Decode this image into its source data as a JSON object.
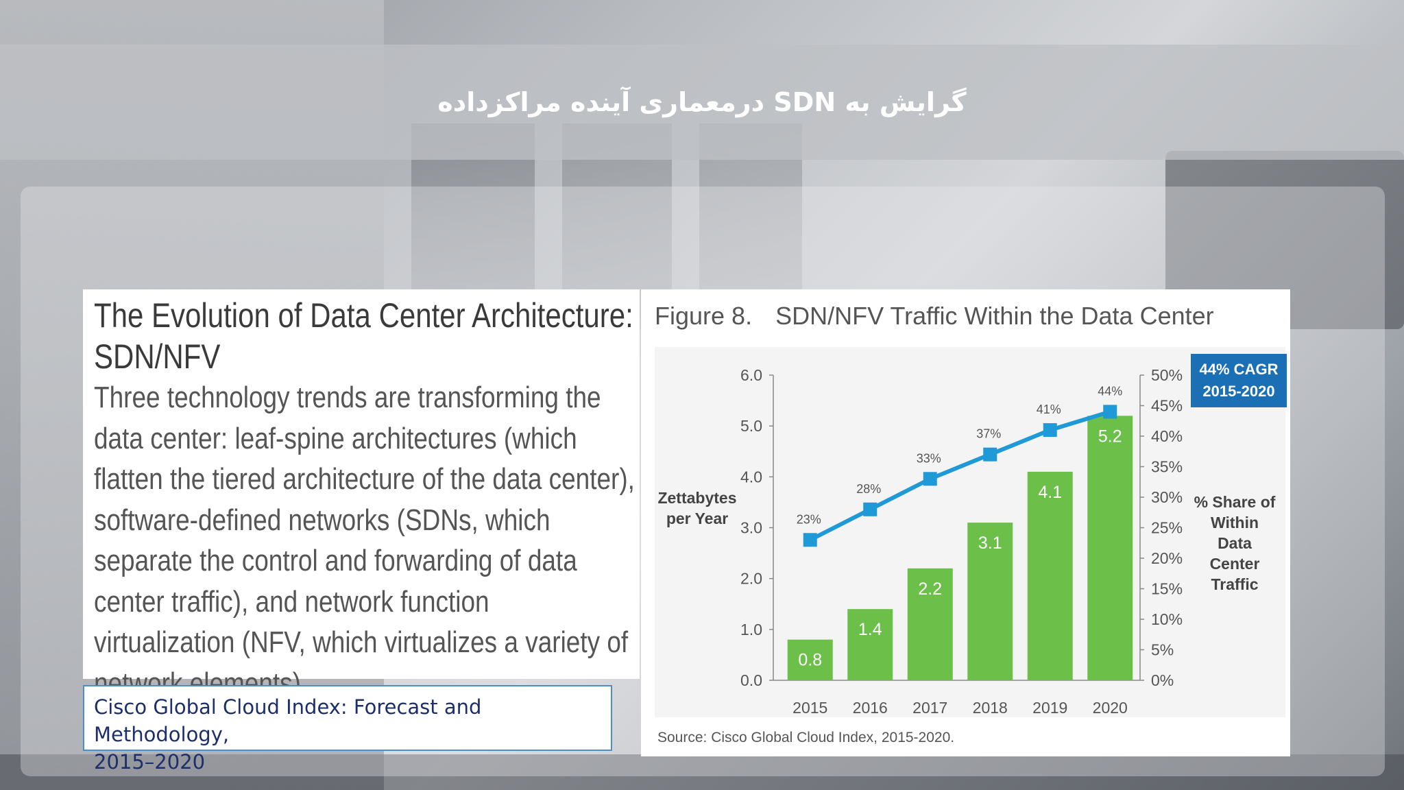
{
  "slide_title": "گرایش به SDN درمعماری آینده مراکزداده",
  "text_panel": {
    "heading": "The Evolution of Data Center Architecture: SDN/NFV",
    "body": "Three technology trends are transforming the data center: leaf-spine architectures (which flatten the tiered architecture of the data center), software-defined networks (SDNs, which separate the control and forwarding of data center traffic), and network function virtualization (NFV, which virtualizes a variety of network elements)."
  },
  "source_box": {
    "line1": "Cisco Global Cloud Index: Forecast and Methodology,",
    "line2": "2015–2020"
  },
  "figure": {
    "number": "Figure 8.",
    "title": "SDN/NFV Traffic Within the Data Center",
    "source": "Source: Cisco Global Cloud Index, 2015-2020."
  },
  "chart_data": {
    "type": "bar",
    "categories": [
      "2015",
      "2016",
      "2017",
      "2018",
      "2019",
      "2020"
    ],
    "series": [
      {
        "type": "bar",
        "axis": "left",
        "values": [
          0.8,
          1.4,
          2.2,
          3.1,
          4.1,
          5.2
        ],
        "color": "#6cc04a"
      },
      {
        "type": "line",
        "axis": "right",
        "values": [
          23,
          28,
          33,
          37,
          41,
          44
        ],
        "value_labels": [
          "23%",
          "28%",
          "33%",
          "37%",
          "41%",
          "44%"
        ],
        "color": "#1f9ad6"
      }
    ],
    "ylabel_lines": [
      "Zettabytes",
      "per Year"
    ],
    "y2label_lines": [
      "% Share of",
      "Within",
      "Data",
      "Center",
      "Traffic"
    ],
    "ylim": [
      0,
      6
    ],
    "yticks": [
      "0.0",
      "1.0",
      "2.0",
      "3.0",
      "4.0",
      "5.0",
      "6.0"
    ],
    "y2lim": [
      0,
      50
    ],
    "y2ticks": [
      "0%",
      "5%",
      "10%",
      "15%",
      "20%",
      "25%",
      "30%",
      "35%",
      "40%",
      "45%",
      "50%"
    ],
    "badge_lines": [
      "44% CAGR",
      "2015-2020"
    ],
    "badge_color": "#1a6fb5",
    "grid": false
  }
}
